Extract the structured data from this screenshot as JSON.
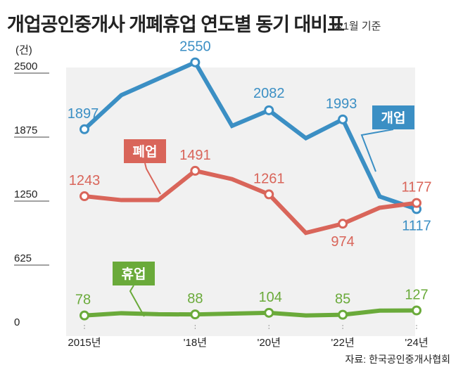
{
  "title": "개업공인중개사 개폐휴업 연도별 동기 대비표",
  "note": "※1월 기준",
  "source": "자료: 한국공인중개사협회",
  "colors": {
    "open": "#3b8fc4",
    "close": "#d9655a",
    "suspend": "#6aaa3a",
    "plot_bg": "#f1f1f1"
  },
  "chart_data": {
    "type": "line",
    "ylabel": "(건)",
    "ylim": [
      0,
      2500
    ],
    "yticks": [
      0,
      625,
      1250,
      1875,
      2500
    ],
    "x": [
      "2015",
      "2016",
      "2017",
      "2018",
      "2019",
      "2020",
      "2021",
      "2022",
      "2023",
      "2024"
    ],
    "xtick_labels": [
      {
        "x": "2015",
        "label": "2015년"
      },
      {
        "x": "2018",
        "label": "'18년"
      },
      {
        "x": "2020",
        "label": "'20년"
      },
      {
        "x": "2022",
        "label": "'22년"
      },
      {
        "x": "2024",
        "label": "'24년"
      }
    ],
    "series": [
      {
        "name": "개업",
        "key": "open",
        "values": [
          1897,
          2230,
          2390,
          2550,
          1930,
          2082,
          1810,
          1993,
          1240,
          1117
        ],
        "labels": [
          {
            "x": "2015",
            "text": "1897"
          },
          {
            "x": "2018",
            "text": "2550"
          },
          {
            "x": "2020",
            "text": "2082"
          },
          {
            "x": "2022",
            "text": "1993"
          },
          {
            "x": "2024",
            "text": "1117"
          }
        ]
      },
      {
        "name": "폐업",
        "key": "close",
        "values": [
          1243,
          1205,
          1205,
          1491,
          1410,
          1261,
          885,
          974,
          1130,
          1177
        ],
        "labels": [
          {
            "x": "2015",
            "text": "1243"
          },
          {
            "x": "2018",
            "text": "1491"
          },
          {
            "x": "2020",
            "text": "1261"
          },
          {
            "x": "2022",
            "text": "974"
          },
          {
            "x": "2024",
            "text": "1177"
          }
        ]
      },
      {
        "name": "휴업",
        "key": "suspend",
        "values": [
          78,
          100,
          90,
          88,
          96,
          104,
          78,
          85,
          125,
          127
        ],
        "labels": [
          {
            "x": "2015",
            "text": "78"
          },
          {
            "x": "2018",
            "text": "88"
          },
          {
            "x": "2020",
            "text": "104"
          },
          {
            "x": "2022",
            "text": "85"
          },
          {
            "x": "2024",
            "text": "127"
          }
        ]
      }
    ]
  }
}
